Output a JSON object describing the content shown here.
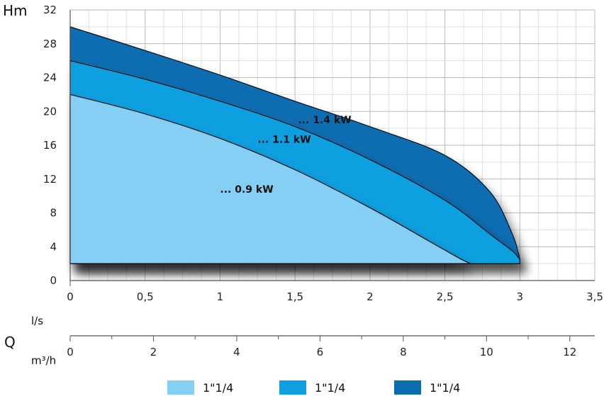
{
  "chart_data": {
    "type": "area",
    "ylabel": "Hm",
    "xlabel": "l/s",
    "x2label": "m³/h",
    "quantity_label": "Q",
    "xlim": [
      0,
      3.5
    ],
    "ylim": [
      0,
      32
    ],
    "x_ticks": [
      "0",
      "0,5",
      "1",
      "1,5",
      "2",
      "2,5",
      "3",
      "3,5"
    ],
    "y_ticks": [
      "0",
      "4",
      "8",
      "12",
      "16",
      "20",
      "24",
      "28",
      "32"
    ],
    "x2_ticks": [
      "0",
      "2",
      "4",
      "6",
      "8",
      "10",
      "12"
    ],
    "grid": true,
    "legend_position": "bottom",
    "series": [
      {
        "legend": "1\"1/4",
        "annotation": "... 0.9 kW",
        "color": "#86cff4",
        "x": [
          0,
          0.5,
          1,
          1.5,
          2,
          2.4,
          2.6,
          2.67
        ],
        "y": [
          22,
          19.7,
          16.8,
          13.1,
          8.6,
          4.6,
          2.6,
          2
        ]
      },
      {
        "legend": "1\"1/4",
        "annotation": "... 1.1 kW",
        "color": "#0d9fe0",
        "x": [
          0,
          0.5,
          1,
          1.5,
          2,
          2.5,
          2.8,
          2.95,
          3
        ],
        "y": [
          26,
          23.8,
          21.2,
          18.2,
          14.3,
          9.5,
          5.5,
          3.5,
          2.5
        ]
      },
      {
        "legend": "1\"1/4",
        "annotation": "... 1.4 kW",
        "color": "#0a6db0",
        "x": [
          0,
          0.5,
          1,
          1.5,
          2,
          2.5,
          2.8,
          2.95,
          3
        ],
        "y": [
          30,
          27.2,
          24.3,
          21.2,
          18.2,
          14.8,
          10.5,
          5.5,
          2.5
        ]
      }
    ]
  }
}
